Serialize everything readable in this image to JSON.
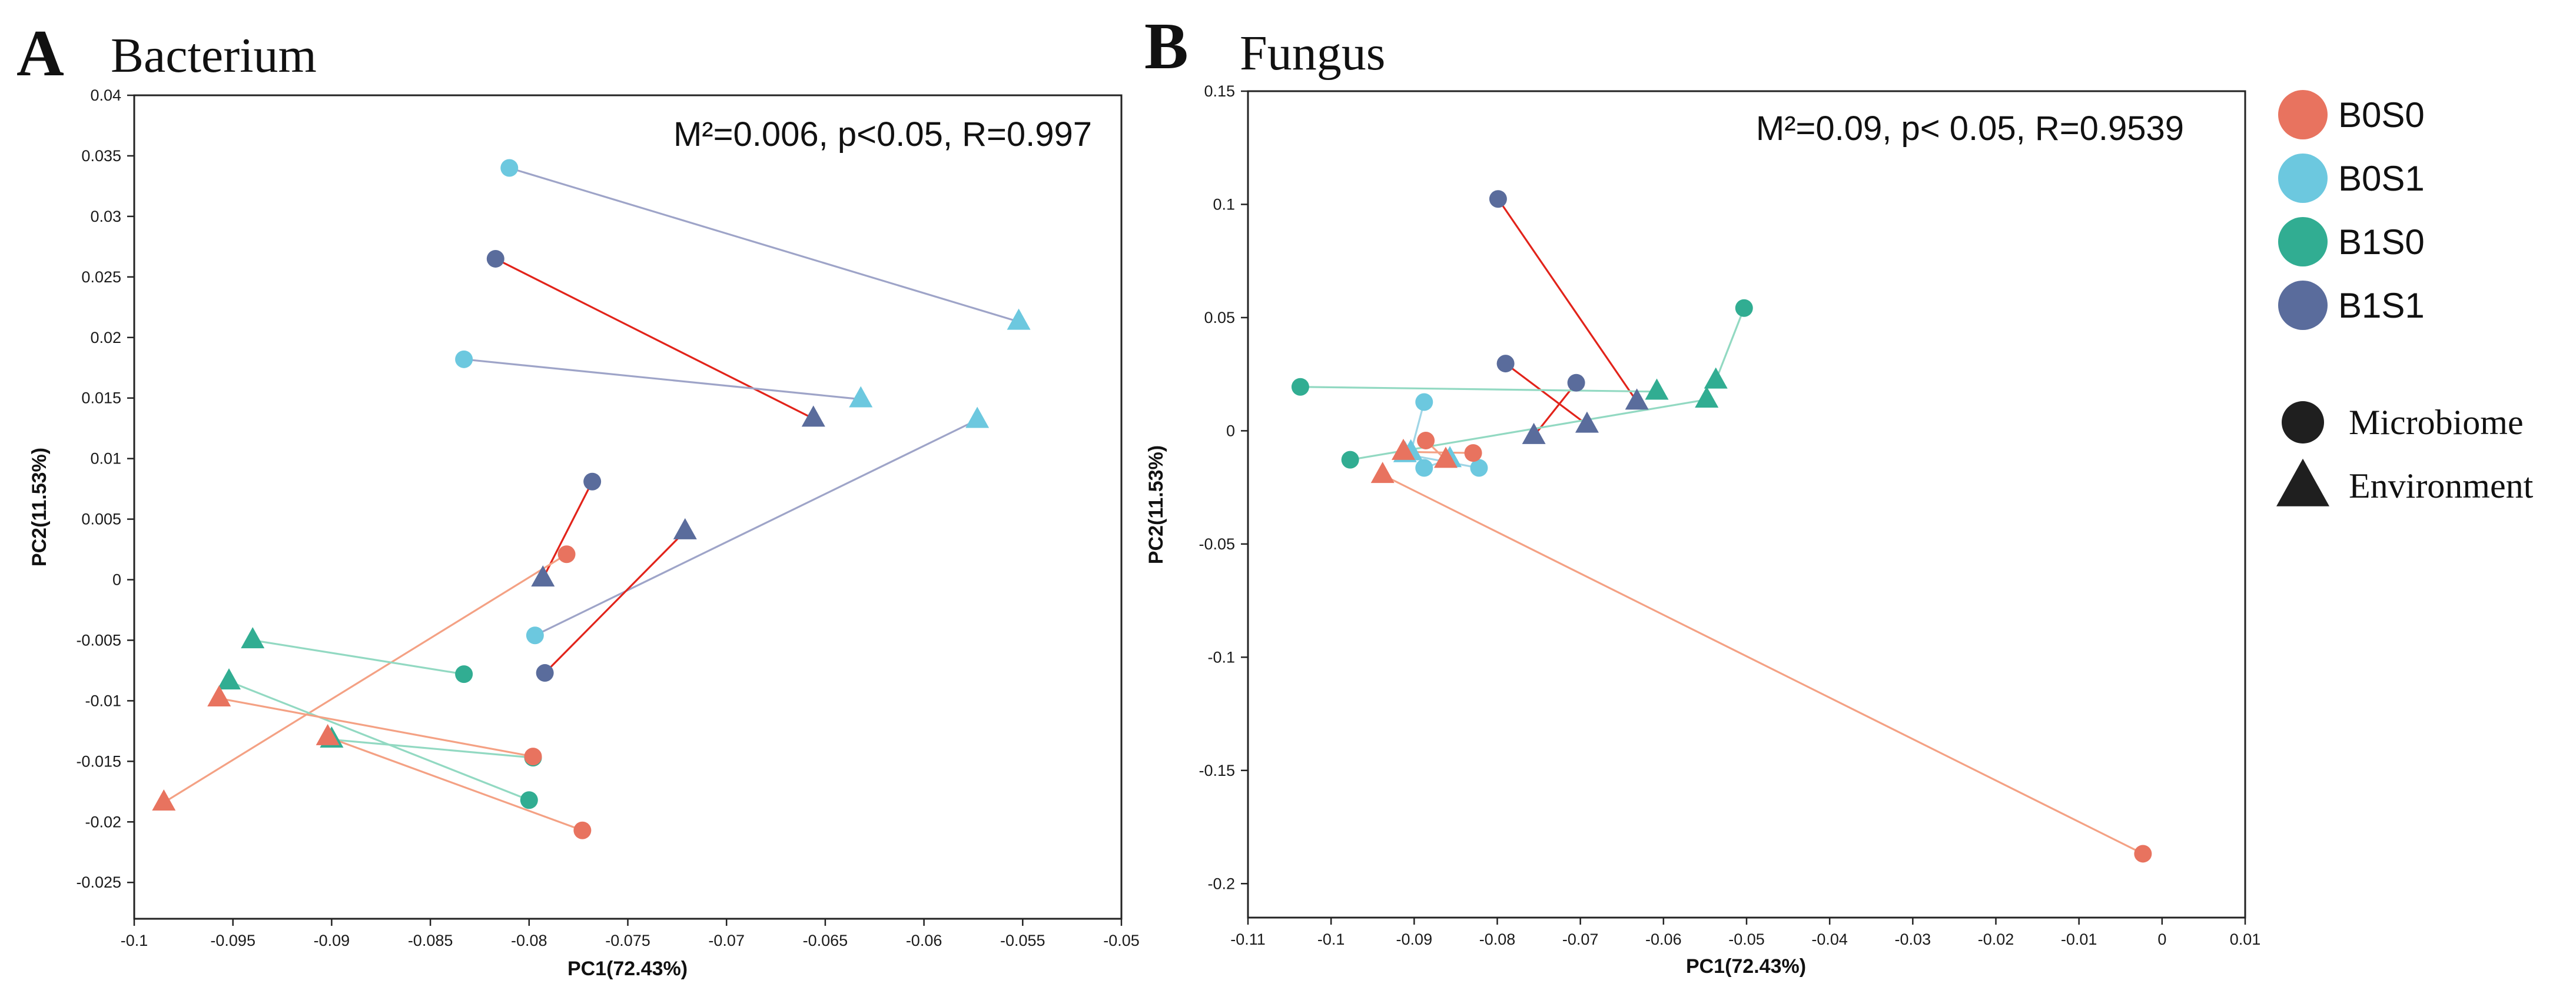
{
  "colors": {
    "B0S0": "#e8735f",
    "B0S1": "#6cc8df",
    "B1S0": "#31ad92",
    "B1S1": "#5a6c9c",
    "procrustes_red": "#e2231a",
    "procrustes_lavender": "#9ea4c8",
    "procrustes_salmon": "#f4a184",
    "procrustes_mint": "#92d9c2",
    "procrustes_lightblue": "#9fd5e6"
  },
  "legend": {
    "groups": [
      {
        "label": "B0S0",
        "color_key": "B0S0"
      },
      {
        "label": "B0S1",
        "color_key": "B0S1"
      },
      {
        "label": "B1S0",
        "color_key": "B1S0"
      },
      {
        "label": "B1S1",
        "color_key": "B1S1"
      }
    ],
    "shapes": [
      {
        "label": "Microbiome",
        "shape": "circle"
      },
      {
        "label": "Environment",
        "shape": "triangle"
      }
    ]
  },
  "chart_data": [
    {
      "type": "scatter",
      "panel": "A",
      "title": "Bacterium",
      "annotation": "M²=0.006, p<0.05, R=0.997",
      "xlabel": "PC1(72.43%)",
      "ylabel": "PC2(11.53%)",
      "xlim": [
        -0.1,
        -0.05
      ],
      "ylim": [
        -0.028,
        0.04
      ],
      "xticks": [
        -0.1,
        -0.095,
        -0.09,
        -0.085,
        -0.08,
        -0.075,
        -0.07,
        -0.065,
        -0.06,
        -0.055,
        -0.05
      ],
      "xtick_labels": [
        "-0.1",
        "-0.095",
        "-0.09",
        "-0.085",
        "-0.08",
        "-0.075",
        "-0.07",
        "-0.065",
        "-0.06",
        "-0.055",
        "-0.05"
      ],
      "yticks": [
        -0.025,
        -0.02,
        -0.015,
        -0.01,
        -0.005,
        0,
        0.005,
        0.01,
        0.015,
        0.02,
        0.025,
        0.03,
        0.035,
        0.04
      ],
      "ytick_labels": [
        "-0.025",
        "-0.02",
        "-0.015",
        "-0.01",
        "-0.005",
        "0",
        "0.005",
        "0.01",
        "0.015",
        "0.02",
        "0.025",
        "0.03",
        "0.035",
        "0.04"
      ],
      "pairs": [
        {
          "group": "B0S1",
          "line": "procrustes_lavender",
          "microbiome": [
            -0.081,
            0.034
          ],
          "environment": [
            -0.0552,
            0.0213
          ]
        },
        {
          "group": "B1S1",
          "line": "procrustes_red",
          "microbiome": [
            -0.0817,
            0.0265
          ],
          "environment": [
            -0.0656,
            0.0133
          ]
        },
        {
          "group": "B0S1",
          "line": "procrustes_lavender",
          "microbiome": [
            -0.0833,
            0.0182
          ],
          "environment": [
            -0.0632,
            0.0149
          ]
        },
        {
          "group": "B0S1",
          "line": "procrustes_lavender",
          "microbiome": [
            -0.0797,
            -0.0046
          ],
          "environment": [
            -0.0573,
            0.0132
          ]
        },
        {
          "group": "B1S1",
          "line": "procrustes_red",
          "microbiome": [
            -0.0768,
            0.0081
          ],
          "environment": [
            -0.0793,
            0.0001
          ]
        },
        {
          "group": "B1S1",
          "line": "procrustes_red",
          "microbiome": [
            -0.0792,
            -0.0077
          ],
          "environment": [
            -0.0721,
            0.004
          ]
        },
        {
          "group": "B0S0",
          "line": "procrustes_salmon",
          "microbiome": [
            -0.0781,
            0.0021
          ],
          "environment": [
            -0.0985,
            -0.0184
          ]
        },
        {
          "group": "B1S0",
          "line": "procrustes_mint",
          "microbiome": [
            -0.0833,
            -0.0078
          ],
          "environment": [
            -0.094,
            -0.005
          ]
        },
        {
          "group": "B1S0",
          "line": "procrustes_mint",
          "microbiome": [
            -0.08,
            -0.0182
          ],
          "environment": [
            -0.0952,
            -0.0084
          ]
        },
        {
          "group": "B1S0",
          "line": "procrustes_mint",
          "microbiome": [
            -0.0798,
            -0.0147
          ],
          "environment": [
            -0.09,
            -0.0132
          ]
        },
        {
          "group": "B0S0",
          "line": "procrustes_salmon",
          "microbiome": [
            -0.0798,
            -0.0146
          ],
          "environment": [
            -0.0957,
            -0.0098
          ]
        },
        {
          "group": "B0S0",
          "line": "procrustes_salmon",
          "microbiome": [
            -0.0773,
            -0.0207
          ],
          "environment": [
            -0.0902,
            -0.013
          ]
        }
      ]
    },
    {
      "type": "scatter",
      "panel": "B",
      "title": "Fungus",
      "annotation": "M²=0.09, p< 0.05,   R=0.9539",
      "xlabel": "PC1(72.43%)",
      "ylabel": "PC2(11.53%)",
      "xlim": [
        -0.11,
        0.01
      ],
      "ylim": [
        -0.215,
        0.15
      ],
      "xticks": [
        -0.11,
        -0.1,
        -0.09,
        -0.08,
        -0.07,
        -0.06,
        -0.05,
        -0.04,
        -0.03,
        -0.02,
        -0.01,
        0,
        0.01
      ],
      "xtick_labels": [
        "-0.11",
        "-0.1",
        "-0.09",
        "-0.08",
        "-0.07",
        "-0.06",
        "-0.05",
        "-0.04",
        "-0.03",
        "-0.02",
        "-0.01",
        "0",
        "0.01"
      ],
      "yticks": [
        -0.2,
        -0.15,
        -0.1,
        -0.05,
        0,
        0.05,
        0.1,
        0.15
      ],
      "ytick_labels": [
        "-0.2",
        "-0.15",
        "-0.1",
        "-0.05",
        "0",
        "0.05",
        "0.1",
        "0.15"
      ],
      "pairs": [
        {
          "group": "B1S1",
          "line": "procrustes_red",
          "microbiome": [
            -0.0799,
            0.1024
          ],
          "environment": [
            -0.0632,
            0.0129
          ]
        },
        {
          "group": "B1S1",
          "line": "procrustes_red",
          "microbiome": [
            -0.079,
            0.0297
          ],
          "environment": [
            -0.0692,
            0.0027
          ]
        },
        {
          "group": "B1S1",
          "line": "procrustes_red",
          "microbiome": [
            -0.0705,
            0.0212
          ],
          "environment": [
            -0.0756,
            -0.0023
          ]
        },
        {
          "group": "B1S0",
          "line": "procrustes_mint",
          "microbiome": [
            -0.1037,
            0.0194
          ],
          "environment": [
            -0.0608,
            0.0173
          ]
        },
        {
          "group": "B1S0",
          "line": "procrustes_mint",
          "microbiome": [
            -0.0503,
            0.0542
          ],
          "environment": [
            -0.0537,
            0.0222
          ]
        },
        {
          "group": "B1S0",
          "line": "procrustes_mint",
          "microbiome": [
            -0.0977,
            -0.0128
          ],
          "environment": [
            -0.0548,
            0.0138
          ]
        },
        {
          "group": "B0S1",
          "line": "procrustes_lightblue",
          "microbiome": [
            -0.0888,
            0.0127
          ],
          "environment": [
            -0.0904,
            -0.0095
          ]
        },
        {
          "group": "B0S1",
          "line": "procrustes_lightblue",
          "microbiome": [
            -0.0888,
            -0.0164
          ],
          "environment": [
            -0.0857,
            -0.0125
          ]
        },
        {
          "group": "B0S1",
          "line": "procrustes_lightblue",
          "microbiome": [
            -0.0822,
            -0.0164
          ],
          "environment": [
            -0.0911,
            -0.0103
          ]
        },
        {
          "group": "B0S0",
          "line": "procrustes_salmon",
          "microbiome": [
            -0.0886,
            -0.0043
          ],
          "environment": [
            -0.0862,
            -0.0128
          ]
        },
        {
          "group": "B0S0",
          "line": "procrustes_salmon",
          "microbiome": [
            -0.0829,
            -0.0098
          ],
          "environment": [
            -0.0913,
            -0.0093
          ]
        },
        {
          "group": "B0S0",
          "line": "procrustes_salmon",
          "microbiome": [
            -0.0023,
            -0.1868
          ],
          "environment": [
            -0.0938,
            -0.0195
          ]
        }
      ]
    }
  ]
}
